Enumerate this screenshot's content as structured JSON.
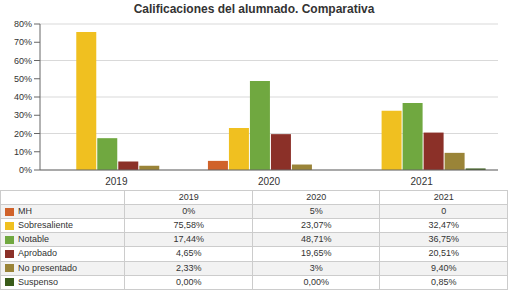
{
  "chart_data": {
    "type": "bar",
    "title": "Calificaciones del alumnado. Comparativa",
    "categories": [
      "2019",
      "2020",
      "2021"
    ],
    "series": [
      {
        "name": "MH",
        "color": "#D0622A",
        "values": [
          0.0,
          5.0,
          0.0
        ],
        "value_labels": [
          "0%",
          "5%",
          "0"
        ]
      },
      {
        "name": "Sobresaliente",
        "color": "#F0C020",
        "values": [
          75.58,
          23.07,
          32.47
        ],
        "value_labels": [
          "75,58%",
          "23,07%",
          "32,47%"
        ]
      },
      {
        "name": "Notable",
        "color": "#70A840",
        "values": [
          17.44,
          48.71,
          36.75
        ],
        "value_labels": [
          "17,44%",
          "48,71%",
          "36,75%"
        ]
      },
      {
        "name": "Aprobado",
        "color": "#8B3028",
        "values": [
          4.65,
          19.65,
          20.51
        ],
        "value_labels": [
          "4,65%",
          "19,65%",
          "20,51%"
        ]
      },
      {
        "name": "No presentado",
        "color": "#9A8438",
        "values": [
          2.33,
          3.0,
          9.4
        ],
        "value_labels": [
          "2,33%",
          "3%",
          "9,40%"
        ]
      },
      {
        "name": "Suspenso",
        "color": "#3A5C1A",
        "values": [
          0.0,
          0.0,
          0.85
        ],
        "value_labels": [
          "0,00%",
          "0,00%",
          "0,85%"
        ]
      }
    ],
    "ylim": [
      0,
      80
    ],
    "yticks": [
      {
        "value": 0,
        "label": "0%"
      },
      {
        "value": 10,
        "label": "10%"
      },
      {
        "value": 20,
        "label": "20%"
      },
      {
        "value": 30,
        "label": "30%"
      },
      {
        "value": 40,
        "label": "40%"
      },
      {
        "value": 50,
        "label": "50%"
      },
      {
        "value": 60,
        "label": "60%"
      },
      {
        "value": 70,
        "label": "70%"
      },
      {
        "value": 80,
        "label": "80%"
      }
    ],
    "grid": true
  }
}
